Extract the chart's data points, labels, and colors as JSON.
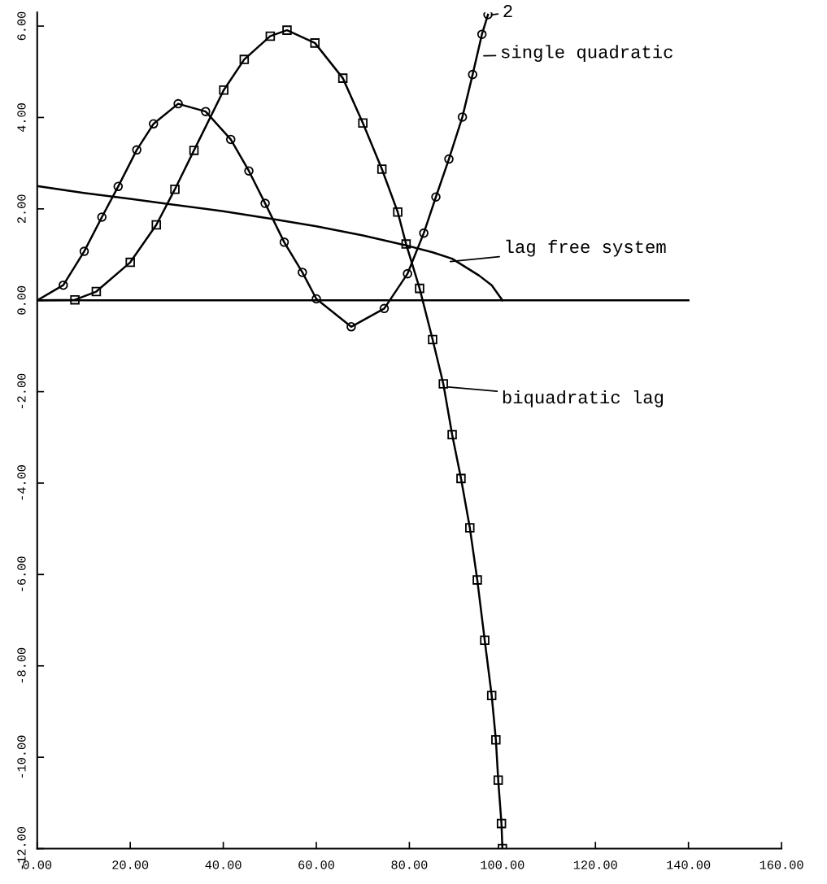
{
  "chart_data": {
    "type": "line",
    "xlim": [
      0,
      160
    ],
    "xticks": [
      {
        "value": 0,
        "label": "0.00"
      },
      {
        "value": 20,
        "label": "20.00"
      },
      {
        "value": 40,
        "label": "40.00"
      },
      {
        "value": 60,
        "label": "60.00"
      },
      {
        "value": 80,
        "label": "80.00"
      },
      {
        "value": 100,
        "label": "100.00"
      },
      {
        "value": 120,
        "label": "120.00"
      },
      {
        "value": 140,
        "label": "140.00"
      },
      {
        "value": 160,
        "label": "160.00"
      }
    ],
    "ylim": [
      -12,
      6.3
    ],
    "yticks": [
      {
        "value": -12,
        "label": "-12.00"
      },
      {
        "value": -10,
        "label": "-10.00"
      },
      {
        "value": -8,
        "label": "-8.00"
      },
      {
        "value": -6,
        "label": "-6.00"
      },
      {
        "value": -4,
        "label": "-4.00"
      },
      {
        "value": -2,
        "label": "-2.00"
      },
      {
        "value": 0,
        "label": "0.00"
      },
      {
        "value": 2,
        "label": "2.00"
      },
      {
        "value": 4,
        "label": "4.00"
      },
      {
        "value": 6,
        "label": "6.00"
      }
    ],
    "grid": false,
    "series": [
      {
        "color": "#000000",
        "marker": "circle",
        "x": [
          0,
          5.6,
          10.1,
          13.9,
          17.4,
          21.4,
          25,
          30.3,
          36.2,
          41.6,
          45.5,
          49,
          53.1,
          57,
          60,
          67.5,
          74.6,
          79.6,
          83.1,
          85.7,
          88.5,
          91.4,
          93.6,
          95.6,
          96.9
        ],
        "values": [
          0,
          0.33,
          1.07,
          1.82,
          2.49,
          3.29,
          3.86,
          4.3,
          4.13,
          3.52,
          2.83,
          2.12,
          1.27,
          0.61,
          0.03,
          -0.58,
          -0.18,
          0.58,
          1.47,
          2.26,
          3.09,
          4.01,
          4.94,
          5.82,
          6.25
        ]
      },
      {
        "color": "#000000",
        "marker": "square",
        "x": [
          0,
          8.1,
          12.7,
          20,
          25.6,
          29.6,
          33.7,
          40.1,
          44.5,
          50.1,
          53.7,
          59.7,
          65.7,
          70,
          74.1,
          77.5,
          79.3,
          82.2,
          85,
          87.3,
          89.2,
          91.1,
          93,
          94.6,
          96.2,
          97.7,
          98.6,
          99.1,
          99.8,
          100
        ],
        "values": [
          0,
          0.01,
          0.19,
          0.83,
          1.65,
          2.43,
          3.28,
          4.6,
          5.27,
          5.78,
          5.91,
          5.63,
          4.86,
          3.88,
          2.87,
          1.93,
          1.23,
          0.26,
          -0.86,
          -1.83,
          -2.94,
          -3.9,
          -4.98,
          -6.12,
          -7.44,
          -8.65,
          -9.62,
          -10.5,
          -11.45,
          -12
        ]
      },
      {
        "color": "#000000",
        "x": [
          0,
          10,
          20,
          28.7,
          40,
          50,
          60,
          70,
          79.3,
          85,
          89.2,
          95,
          97.7,
          100
        ],
        "values": [
          2.5,
          2.35,
          2.22,
          2.1,
          1.95,
          1.79,
          1.62,
          1.42,
          1.2,
          1.05,
          0.91,
          0.54,
          0.33,
          0
        ]
      },
      {
        "color": "#000000",
        "x": [
          0,
          140
        ],
        "values": [
          0,
          0
        ]
      }
    ],
    "annotations": [
      "single quadratic",
      "lag free system",
      "biquadratic lag",
      "2"
    ]
  }
}
